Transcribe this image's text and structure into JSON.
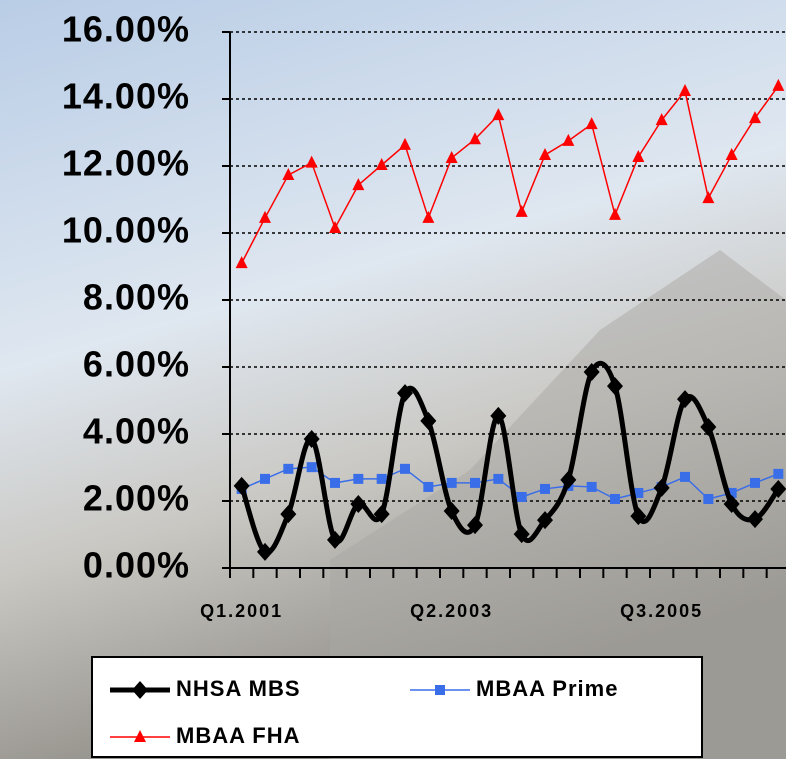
{
  "chart_data": {
    "type": "line",
    "categories": [
      "Q1.2001",
      null,
      null,
      null,
      null,
      null,
      null,
      null,
      null,
      "Q2.2003",
      null,
      null,
      null,
      null,
      null,
      null,
      null,
      null,
      "Q3.2005",
      null,
      null,
      null,
      null,
      null
    ],
    "series": [
      {
        "name": "NHSA MBS",
        "color": "#000000",
        "marker": "diamond",
        "smooth": true,
        "values": [
          2.45,
          0.48,
          1.61,
          3.85,
          0.84,
          1.91,
          1.61,
          5.22,
          4.39,
          1.7,
          1.28,
          4.54,
          1.01,
          1.43,
          2.63,
          5.85,
          5.43,
          1.55,
          2.39,
          5.04,
          4.21,
          1.91,
          1.46,
          2.36
        ]
      },
      {
        "name": "MBAA Prime",
        "color": "#3a6ee8",
        "marker": "square",
        "values": [
          2.36,
          2.66,
          2.96,
          3.01,
          2.54,
          2.66,
          2.66,
          2.96,
          2.42,
          2.54,
          2.54,
          2.66,
          2.12,
          2.36,
          2.45,
          2.42,
          2.06,
          2.24,
          2.42,
          2.72,
          2.06,
          2.24,
          2.54,
          2.81
        ]
      },
      {
        "name": "MBAA FHA",
        "color": "#ff0000",
        "marker": "triangle",
        "values": [
          9.1,
          10.45,
          11.73,
          12.1,
          10.15,
          11.43,
          12.03,
          12.63,
          10.45,
          12.24,
          12.8,
          13.52,
          10.63,
          12.33,
          12.75,
          13.25,
          10.54,
          12.27,
          13.37,
          14.24,
          11.04,
          12.33,
          13.43,
          14.39
        ]
      }
    ],
    "ylim": [
      0,
      16
    ],
    "yticks": [
      {
        "value": 0,
        "label": "0.00%"
      },
      {
        "value": 2,
        "label": "2.00%"
      },
      {
        "value": 4,
        "label": "4.00%"
      },
      {
        "value": 6,
        "label": "6.00%"
      },
      {
        "value": 8,
        "label": "8.00%"
      },
      {
        "value": 10,
        "label": "10.00%"
      },
      {
        "value": 12,
        "label": "12.00%"
      },
      {
        "value": 14,
        "label": "14.00%"
      },
      {
        "value": 16,
        "label": "16.00%"
      }
    ],
    "grid": true
  }
}
